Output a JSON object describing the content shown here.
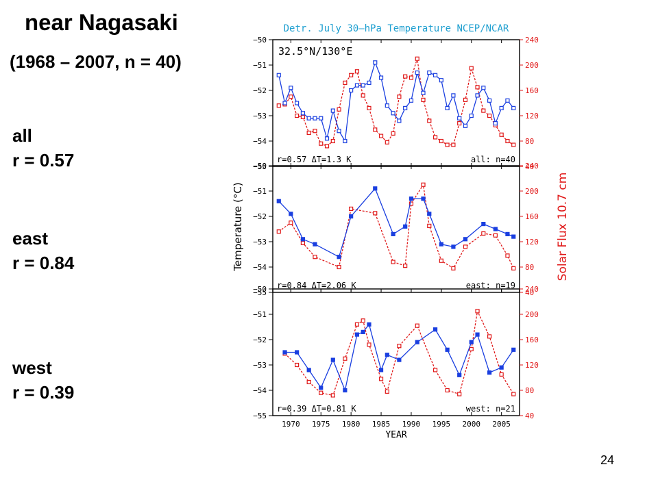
{
  "slide": {
    "title": "near Nagasaki",
    "subtitle": "(1968 – 2007, n = 40)",
    "labels": [
      {
        "line1": "all",
        "line2": "r = 0.57"
      },
      {
        "line1": "east",
        "line2": "r = 0.84"
      },
      {
        "line1": "west",
        "line2": "r = 0.39"
      }
    ],
    "page_number": "24"
  },
  "chart_data": {
    "type": "line",
    "title": "Detr. July  30–hPa Temperature NCEP/NCAR",
    "location": "32.5°N/130°E",
    "xlabel": "YEAR",
    "ylabel_left": "Temperature (°C)",
    "ylabel_right": "Solar Flux 10.7 cm",
    "xlim": [
      1967,
      2008
    ],
    "x_ticks": [
      1970,
      1975,
      1980,
      1985,
      1990,
      1995,
      2000,
      2005
    ],
    "ylim_left": [
      -55,
      -50
    ],
    "y_ticks_left": [
      -55,
      -54,
      -53,
      -52,
      -51,
      -50
    ],
    "ylim_right": [
      40,
      240
    ],
    "y_ticks_right": [
      40,
      80,
      120,
      160,
      200,
      240
    ],
    "colors": {
      "temperature": "#1a3fe0",
      "solar": "#e01818",
      "title": "#1e9fd0"
    },
    "panels": [
      {
        "stats": "r=0.57  ΔT=1.3  K",
        "subset": "all:  n=40",
        "temperature": [
          [
            1968,
            -51.4
          ],
          [
            1969,
            -52.5
          ],
          [
            1970,
            -51.9
          ],
          [
            1971,
            -52.5
          ],
          [
            1972,
            -52.9
          ],
          [
            1973,
            -53.1
          ],
          [
            1974,
            -53.1
          ],
          [
            1975,
            -53.1
          ],
          [
            1976,
            -53.9
          ],
          [
            1977,
            -52.8
          ],
          [
            1978,
            -53.6
          ],
          [
            1979,
            -54.0
          ],
          [
            1980,
            -52.0
          ],
          [
            1981,
            -51.8
          ],
          [
            1982,
            -51.8
          ],
          [
            1983,
            -51.7
          ],
          [
            1984,
            -50.9
          ],
          [
            1985,
            -51.5
          ],
          [
            1986,
            -52.6
          ],
          [
            1987,
            -52.9
          ],
          [
            1988,
            -53.2
          ],
          [
            1989,
            -52.7
          ],
          [
            1990,
            -52.4
          ],
          [
            1991,
            -51.3
          ],
          [
            1992,
            -52.1
          ],
          [
            1993,
            -51.3
          ],
          [
            1994,
            -51.4
          ],
          [
            1995,
            -51.6
          ],
          [
            1996,
            -52.7
          ],
          [
            1997,
            -52.2
          ],
          [
            1998,
            -53.1
          ],
          [
            1999,
            -53.4
          ],
          [
            2000,
            -53.0
          ],
          [
            2001,
            -52.2
          ],
          [
            2002,
            -51.9
          ],
          [
            2003,
            -52.4
          ],
          [
            2004,
            -53.3
          ],
          [
            2005,
            -52.7
          ],
          [
            2006,
            -52.4
          ],
          [
            2007,
            -52.7
          ]
        ],
        "solar": [
          [
            1968,
            136
          ],
          [
            1969,
            138
          ],
          [
            1970,
            150
          ],
          [
            1971,
            120
          ],
          [
            1972,
            118
          ],
          [
            1973,
            93
          ],
          [
            1974,
            96
          ],
          [
            1975,
            76
          ],
          [
            1976,
            72
          ],
          [
            1977,
            80
          ],
          [
            1978,
            130
          ],
          [
            1979,
            172
          ],
          [
            1980,
            184
          ],
          [
            1981,
            190
          ],
          [
            1982,
            152
          ],
          [
            1983,
            132
          ],
          [
            1984,
            98
          ],
          [
            1985,
            88
          ],
          [
            1986,
            78
          ],
          [
            1987,
            92
          ],
          [
            1988,
            150
          ],
          [
            1989,
            182
          ],
          [
            1990,
            180
          ],
          [
            1991,
            210
          ],
          [
            1992,
            145
          ],
          [
            1993,
            112
          ],
          [
            1994,
            86
          ],
          [
            1995,
            80
          ],
          [
            1996,
            74
          ],
          [
            1997,
            74
          ],
          [
            1998,
            108
          ],
          [
            1999,
            145
          ],
          [
            2000,
            195
          ],
          [
            2001,
            165
          ],
          [
            2002,
            128
          ],
          [
            2003,
            120
          ],
          [
            2004,
            105
          ],
          [
            2005,
            90
          ],
          [
            2006,
            80
          ],
          [
            2007,
            74
          ]
        ]
      },
      {
        "stats": "r=0.84  ΔT=2.06  K",
        "subset": "east:  n=19",
        "temperature": [
          [
            1968,
            -51.4
          ],
          [
            1970,
            -51.9
          ],
          [
            1972,
            -52.9
          ],
          [
            1974,
            -53.1
          ],
          [
            1978,
            -53.6
          ],
          [
            1980,
            -52.0
          ],
          [
            1984,
            -50.9
          ],
          [
            1987,
            -52.7
          ],
          [
            1989,
            -52.4
          ],
          [
            1990,
            -51.3
          ],
          [
            1992,
            -51.3
          ],
          [
            1993,
            -51.9
          ],
          [
            1995,
            -53.1
          ],
          [
            1997,
            -53.2
          ],
          [
            1999,
            -52.9
          ],
          [
            2002,
            -52.3
          ],
          [
            2004,
            -52.5
          ],
          [
            2006,
            -52.7
          ],
          [
            2007,
            -52.8
          ]
        ],
        "solar": [
          [
            1968,
            136
          ],
          [
            1970,
            150
          ],
          [
            1972,
            118
          ],
          [
            1974,
            96
          ],
          [
            1978,
            80
          ],
          [
            1980,
            172
          ],
          [
            1984,
            165
          ],
          [
            1987,
            88
          ],
          [
            1989,
            82
          ],
          [
            1990,
            180
          ],
          [
            1992,
            210
          ],
          [
            1993,
            145
          ],
          [
            1995,
            90
          ],
          [
            1997,
            78
          ],
          [
            1999,
            112
          ],
          [
            2002,
            133
          ],
          [
            2004,
            130
          ],
          [
            2006,
            98
          ],
          [
            2007,
            78
          ]
        ]
      },
      {
        "stats": "r=0.39  ΔT=0.81  K",
        "subset": "west:  n=21",
        "temperature": [
          [
            1969,
            -52.5
          ],
          [
            1971,
            -52.5
          ],
          [
            1973,
            -53.2
          ],
          [
            1975,
            -53.9
          ],
          [
            1977,
            -52.8
          ],
          [
            1979,
            -54.0
          ],
          [
            1981,
            -51.8
          ],
          [
            1982,
            -51.7
          ],
          [
            1983,
            -51.4
          ],
          [
            1985,
            -53.2
          ],
          [
            1986,
            -52.6
          ],
          [
            1988,
            -52.8
          ],
          [
            1991,
            -52.1
          ],
          [
            1994,
            -51.6
          ],
          [
            1996,
            -52.4
          ],
          [
            1998,
            -53.4
          ],
          [
            2000,
            -52.1
          ],
          [
            2001,
            -51.8
          ],
          [
            2003,
            -53.3
          ],
          [
            2005,
            -53.1
          ],
          [
            2007,
            -52.4
          ]
        ],
        "solar": [
          [
            1969,
            138
          ],
          [
            1971,
            120
          ],
          [
            1973,
            93
          ],
          [
            1975,
            76
          ],
          [
            1977,
            72
          ],
          [
            1979,
            130
          ],
          [
            1981,
            184
          ],
          [
            1982,
            190
          ],
          [
            1983,
            152
          ],
          [
            1985,
            98
          ],
          [
            1986,
            78
          ],
          [
            1988,
            150
          ],
          [
            1991,
            182
          ],
          [
            1994,
            112
          ],
          [
            1996,
            80
          ],
          [
            1998,
            74
          ],
          [
            2000,
            145
          ],
          [
            2001,
            205
          ],
          [
            2003,
            165
          ],
          [
            2005,
            105
          ],
          [
            2007,
            74
          ]
        ]
      }
    ]
  }
}
